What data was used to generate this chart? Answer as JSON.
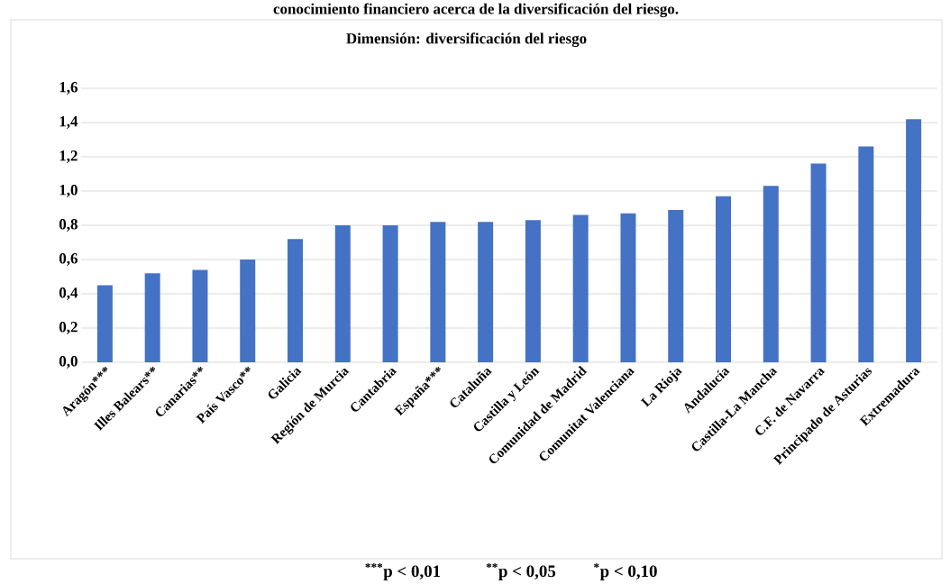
{
  "chart_data": {
    "type": "bar",
    "title": "Dimensión: diversificación del riesgo",
    "categories": [
      "Aragón***",
      "Illes Balears**",
      "Canarias**",
      "País Vasco**",
      "Galicia",
      "Región de Murcia",
      "Cantabria",
      "España***",
      "Cataluña",
      "Castilla y León",
      "Comunidad de Madrid",
      "Comunitat Valenciana",
      "La Rioja",
      "Andalucía",
      "Castilla-La Mancha",
      "C.F. de Navarra",
      "Principado de Asturias",
      "Extremadura"
    ],
    "values": [
      0.45,
      0.52,
      0.54,
      0.6,
      0.72,
      0.8,
      0.8,
      0.82,
      0.82,
      0.83,
      0.86,
      0.87,
      0.89,
      0.97,
      1.03,
      1.16,
      1.26,
      1.42
    ],
    "color": "#4472c4",
    "ylim": [
      0,
      1.6
    ],
    "yticks": [
      {
        "value": 0,
        "label": "0,0"
      },
      {
        "value": 0.2,
        "label": "0,2"
      },
      {
        "value": 0.4,
        "label": "0,4"
      },
      {
        "value": 0.6,
        "label": "0,6"
      },
      {
        "value": 0.8,
        "label": "0,8"
      },
      {
        "value": 1.0,
        "label": "1,0"
      },
      {
        "value": 1.2,
        "label": "1,2"
      },
      {
        "value": 1.4,
        "label": "1,4"
      },
      {
        "value": 1.6,
        "label": "1,6"
      }
    ],
    "grid": "y",
    "annotations": [
      "conocimiento financiero acerca de la diversificación del riesgo.",
      "$^{***}$p < 0,01",
      "$^{**}$p < 0,05",
      "$^{*}$p < 0,10"
    ]
  }
}
